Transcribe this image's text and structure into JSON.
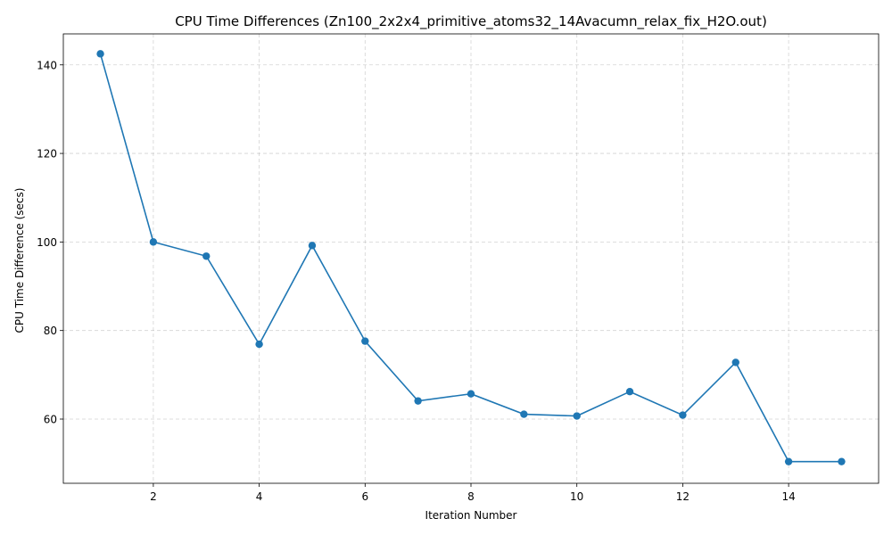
{
  "chart_data": {
    "type": "line",
    "title": "CPU Time Differences (Zn100_2x2x4_primitive_atoms32_14Avacumn_relax_fix_H2O.out)",
    "xlabel": "Iteration Number",
    "ylabel": "CPU Time Difference (secs)",
    "xlim": [
      0.3,
      15.7
    ],
    "ylim": [
      45.5,
      147
    ],
    "xticks": [
      2,
      4,
      6,
      8,
      10,
      12,
      14
    ],
    "yticks": [
      60,
      80,
      100,
      120,
      140
    ],
    "grid": true,
    "color": "#1f77b4",
    "marker": "circle",
    "x": [
      1,
      2,
      3,
      4,
      5,
      6,
      7,
      8,
      9,
      10,
      11,
      12,
      13,
      14,
      15
    ],
    "y": [
      142.5,
      100.0,
      96.8,
      76.9,
      99.2,
      77.6,
      64.1,
      65.7,
      61.1,
      60.7,
      66.2,
      60.9,
      72.8,
      50.4,
      50.4
    ]
  }
}
